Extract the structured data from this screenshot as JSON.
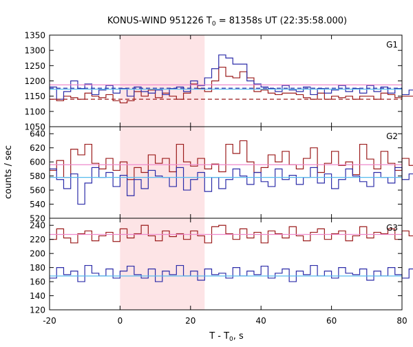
{
  "chart_data": {
    "type": "line",
    "title_prefix": "KONUS-WIND 951226 T",
    "title_sub": "0",
    "title_suffix": " = 81358s UT (22:35:58.000)",
    "xlabel_prefix": "T - T",
    "xlabel_sub": "0",
    "xlabel_suffix": ", s",
    "ylabel": "counts / sec",
    "xlim": [
      -20,
      80
    ],
    "xticks": [
      -20,
      0,
      20,
      40,
      60,
      80
    ],
    "highlight": {
      "x_start": 0,
      "x_end": 24,
      "color": "#fde4e6"
    },
    "bin": 2,
    "colors": {
      "red": "#9b1b1b",
      "blue": "#2b2ba8",
      "bg_red": "#ee88cc",
      "bg_blue": "#55bbee",
      "dashed_red": "#9b1b1b",
      "dashed_blue": "#2b2ba8"
    },
    "panels": [
      {
        "label": "G1",
        "ylim": [
          1050,
          1350
        ],
        "yticks": [
          1050,
          1100,
          1150,
          1200,
          1250,
          1300,
          1350
        ],
        "x_start": -20,
        "series": [
          {
            "name": "red",
            "values": [
              1140,
              1135,
              1150,
              1145,
              1140,
              1160,
              1150,
              1145,
              1155,
              1135,
              1128,
              1135,
              1165,
              1150,
              1170,
              1145,
              1160,
              1150,
              1140,
              1160,
              1190,
              1175,
              1165,
              1200,
              1245,
              1215,
              1210,
              1230,
              1210,
              1165,
              1170,
              1160,
              1155,
              1160,
              1160,
              1155,
              1145,
              1140,
              1160,
              1140,
              1150,
              1145,
              1150,
              1140,
              1150,
              1150,
              1140,
              1160,
              1155,
              1145,
              1150,
              1150,
              1140,
              1160,
              1135,
              1145,
              1140,
              1150,
              1145,
              1150,
              1140,
              1165,
              1145,
              1155,
              1150,
              1150,
              1140,
              1150,
              1155,
              1140,
              1160,
              1130,
              1150,
              1145,
              1140,
              1160,
              1150,
              1150,
              1145,
              1140,
              1150,
              1150,
              1145,
              1140,
              1150,
              1150,
              1140,
              1150,
              1145,
              1150,
              1140,
              1150,
              1145,
              1150,
              1140,
              1150,
              1150,
              1145,
              1140,
              1150
            ]
          },
          {
            "name": "blue",
            "values": [
              1180,
              1140,
              1165,
              1200,
              1175,
              1190,
              1155,
              1170,
              1185,
              1160,
              1175,
              1150,
              1180,
              1165,
              1160,
              1170,
              1155,
              1175,
              1180,
              1165,
              1200,
              1185,
              1210,
              1240,
              1285,
              1275,
              1255,
              1255,
              1200,
              1190,
              1180,
              1175,
              1165,
              1185,
              1170,
              1165,
              1180,
              1155,
              1175,
              1160,
              1170,
              1185,
              1165,
              1175,
              1160,
              1185,
              1165,
              1180,
              1160,
              1175,
              1155,
              1170,
              1185,
              1165,
              1160,
              1175,
              1180,
              1165,
              1155,
              1175,
              1170,
              1185,
              1165,
              1175,
              1160,
              1180,
              1170,
              1215,
              1165,
              1160,
              1180,
              1170,
              1175,
              1190,
              1160,
              1175,
              1180,
              1165,
              1170,
              1185,
              1160,
              1175,
              1170,
              1180,
              1165,
              1170,
              1160,
              1175,
              1180,
              1165,
              1170,
              1175,
              1160,
              1180,
              1170,
              1165,
              1175,
              1170,
              1160,
              1175
            ]
          }
        ],
        "backgrounds": [
          {
            "series": "blue",
            "level": 1173,
            "dashed_level": 1176
          },
          {
            "series": "red",
            "level": 1187,
            "dashed_level": 1140
          }
        ]
      },
      {
        "label": "G2",
        "ylim": [
          520,
          650
        ],
        "yticks": [
          520,
          540,
          560,
          580,
          600,
          620,
          640
        ],
        "x_start": -20,
        "series": [
          {
            "name": "red",
            "values": [
              588,
              602,
              578,
              618,
              610,
              625,
              598,
              590,
              605,
              588,
              600,
              575,
              592,
              585,
              610,
              598,
              605,
              586,
              625,
              600,
              594,
              605,
              590,
              597,
              586,
              625,
              612,
              630,
              600,
              585,
              592,
              610,
              600,
              615,
              596,
              590,
              605,
              620,
              585,
              598,
              615,
              595,
              600,
              582,
              625,
              604,
              590,
              615,
              598,
              588,
              605,
              595,
              620,
              587,
              610,
              600,
              598,
              585,
              610,
              600,
              595,
              620,
              605,
              590,
              600,
              615,
              595,
              605,
              590,
              600,
              612,
              598,
              620,
              600,
              590,
              605,
              610,
              595,
              602,
              588,
              600,
              615,
              595,
              605,
              590,
              600,
              612,
              598,
              620,
              600,
              590,
              605,
              610,
              595,
              602,
              588,
              600,
              615,
              595,
              605
            ]
          },
          {
            "name": "blue",
            "values": [
              590,
              575,
              562,
              583,
              540,
              570,
              592,
              578,
              585,
              565,
              581,
              552,
              575,
              562,
              588,
              580,
              578,
              565,
              592,
              560,
              575,
              585,
              558,
              578,
              562,
              575,
              590,
              580,
              568,
              585,
              572,
              565,
              590,
              575,
              581,
              568,
              578,
              592,
              570,
              583,
              562,
              575,
              590,
              580,
              572,
              565,
              585,
              578,
              570,
              592,
              575,
              583,
              565,
              578,
              590,
              572,
              585,
              568,
              575,
              590,
              580,
              562,
              585,
              575,
              570,
              588,
              575,
              565,
              592,
              578,
              585,
              570,
              575,
              590,
              580,
              568,
              585,
              575,
              572,
              588,
              575,
              565,
              592,
              578,
              585,
              570,
              575,
              590,
              580,
              568,
              585,
              575,
              572,
              588,
              575,
              565,
              592,
              578,
              585,
              570
            ]
          }
        ],
        "backgrounds": [
          {
            "series": "blue",
            "level": 578
          },
          {
            "series": "red",
            "level": 596
          }
        ]
      },
      {
        "label": "G3",
        "ylim": [
          120,
          250
        ],
        "yticks": [
          120,
          140,
          160,
          180,
          200,
          220,
          240
        ],
        "x_start": -20,
        "series": [
          {
            "name": "red",
            "values": [
              220,
              235,
              222,
              215,
              228,
              232,
              218,
              225,
              230,
              217,
              235,
              222,
              228,
              240,
              225,
              218,
              232,
              224,
              228,
              220,
              232,
              225,
              215,
              238,
              240,
              228,
              220,
              235,
              222,
              230,
              215,
              232,
              228,
              222,
              238,
              225,
              218,
              230,
              235,
              220,
              228,
              232,
              218,
              225,
              238,
              222,
              230,
              228,
              235,
              220,
              232,
              225,
              218,
              238,
              228,
              222,
              235,
              230,
              218,
              228,
              235,
              222,
              230,
              225,
              238,
              220,
              228,
              232,
              218,
              225,
              238,
              222,
              230,
              228,
              235,
              220,
              232,
              225,
              218,
              238,
              228,
              222,
              235,
              230,
              218,
              228,
              235,
              222,
              230,
              225,
              238,
              220,
              228,
              232,
              218,
              225,
              238,
              222,
              230,
              228
            ]
          },
          {
            "name": "blue",
            "values": [
              165,
              180,
              170,
              175,
              160,
              183,
              172,
              168,
              178,
              165,
              175,
              182,
              170,
              165,
              178,
              160,
              175,
              170,
              183,
              168,
              175,
              162,
              178,
              170,
              172,
              165,
              180,
              168,
              175,
              170,
              182,
              165,
              172,
              178,
              160,
              175,
              170,
              183,
              168,
              175,
              165,
              180,
              172,
              170,
              178,
              162,
              175,
              168,
              180,
              170,
              165,
              178,
              172,
              168,
              175,
              182,
              170,
              165,
              178,
              172,
              168,
              180,
              165,
              175,
              170,
              178,
              162,
              175,
              168,
              182,
              172,
              165,
              178,
              170,
              175,
              168,
              180,
              165,
              172,
              178,
              170,
              165,
              175,
              182,
              168,
              172,
              178,
              165,
              170,
              175,
              180,
              168,
              172,
              178,
              165,
              170,
              175,
              182,
              168,
              172
            ]
          }
        ],
        "backgrounds": [
          {
            "series": "blue",
            "level": 168
          },
          {
            "series": "red",
            "level": 227
          }
        ]
      }
    ]
  }
}
